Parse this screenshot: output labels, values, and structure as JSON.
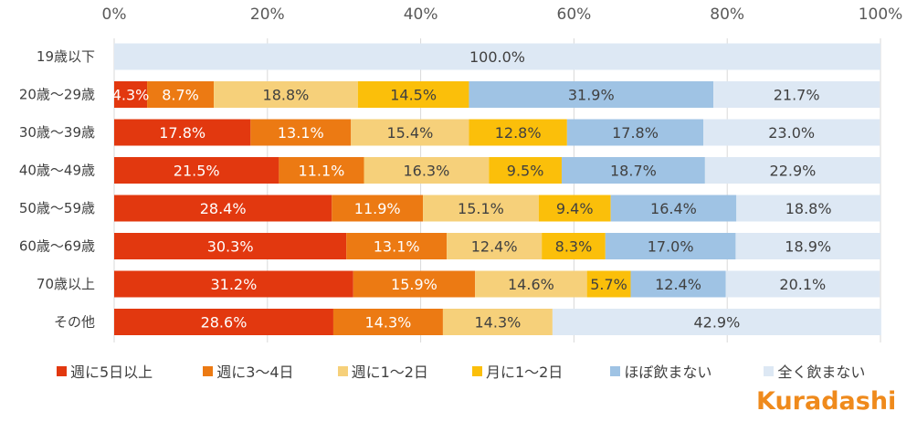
{
  "chart_data": {
    "type": "bar",
    "orientation": "horizontal",
    "stacked": true,
    "percent": true,
    "xlim": [
      0,
      100
    ],
    "x_ticks": [
      "0%",
      "20%",
      "40%",
      "60%",
      "80%",
      "100%"
    ],
    "x_tick_values": [
      0,
      20,
      40,
      60,
      80,
      100
    ],
    "categories": [
      "19歳以下",
      "20歳～29歳",
      "30歳～39歳",
      "40歳～49歳",
      "50歳～59歳",
      "60歳～69歳",
      "70歳以上",
      "その他"
    ],
    "series": [
      {
        "name": "週に5日以上",
        "color": "#e2380f",
        "label_color": "#ffffff",
        "values": [
          0,
          4.3,
          17.8,
          21.5,
          28.4,
          30.3,
          31.2,
          28.6
        ]
      },
      {
        "name": "週に3～4日",
        "color": "#ec7a13",
        "label_color": "#ffffff",
        "values": [
          0,
          8.7,
          13.1,
          11.1,
          11.9,
          13.1,
          15.9,
          14.3
        ]
      },
      {
        "name": "週に1～2日",
        "color": "#f6d07a",
        "label_color": "#404040",
        "values": [
          0,
          18.8,
          15.4,
          16.3,
          15.1,
          12.4,
          14.6,
          14.3
        ]
      },
      {
        "name": "月に1～2日",
        "color": "#fbbf0a",
        "label_color": "#404040",
        "values": [
          0,
          14.5,
          12.8,
          9.5,
          9.4,
          8.3,
          5.7,
          0
        ]
      },
      {
        "name": "ほぼ飲まない",
        "color": "#9fc3e4",
        "label_color": "#404040",
        "values": [
          0,
          31.9,
          17.8,
          18.7,
          16.4,
          17.0,
          12.4,
          0
        ]
      },
      {
        "name": "全く飲まない",
        "color": "#dde8f4",
        "label_color": "#404040",
        "values": [
          100.0,
          21.7,
          23.0,
          22.9,
          18.8,
          18.9,
          20.1,
          42.9
        ]
      }
    ],
    "title": "",
    "xlabel": "",
    "ylabel": "",
    "grid": true,
    "legend_position": "bottom"
  },
  "logo_text": "Kuradashi"
}
